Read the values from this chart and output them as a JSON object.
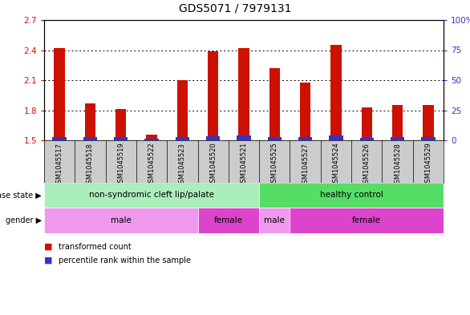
{
  "title": "GDS5071 / 7979131",
  "samples": [
    "GSM1045517",
    "GSM1045518",
    "GSM1045519",
    "GSM1045522",
    "GSM1045523",
    "GSM1045520",
    "GSM1045521",
    "GSM1045525",
    "GSM1045527",
    "GSM1045524",
    "GSM1045526",
    "GSM1045528",
    "GSM1045529"
  ],
  "transformed_count": [
    2.42,
    1.87,
    1.81,
    1.56,
    2.1,
    2.39,
    2.42,
    2.22,
    2.08,
    2.45,
    1.83,
    1.85,
    1.85
  ],
  "percentile_rank": [
    3.0,
    2.5,
    2.5,
    1.5,
    3.0,
    3.5,
    4.0,
    3.0,
    2.5,
    4.0,
    2.0,
    3.0,
    2.5
  ],
  "ymin": 1.5,
  "ymax": 2.7,
  "yticks_left": [
    1.5,
    1.8,
    2.1,
    2.4,
    2.7
  ],
  "right_ytick_vals": [
    0,
    25,
    50,
    75,
    100
  ],
  "right_yticklabels": [
    "0",
    "25",
    "50",
    "75",
    "100%"
  ],
  "bar_color": "#cc1100",
  "percentile_color": "#3333cc",
  "title_fontsize": 10,
  "disease_state_groups": [
    {
      "label": "non-syndromic cleft lip/palate",
      "start": 0,
      "end": 6,
      "color": "#aaeebb"
    },
    {
      "label": "healthy control",
      "start": 7,
      "end": 12,
      "color": "#55dd66"
    }
  ],
  "gender_groups": [
    {
      "label": "male",
      "start": 0,
      "end": 4,
      "color": "#ee99ee"
    },
    {
      "label": "female",
      "start": 5,
      "end": 6,
      "color": "#dd44cc"
    },
    {
      "label": "male",
      "start": 7,
      "end": 7,
      "color": "#ee99ee"
    },
    {
      "label": "female",
      "start": 8,
      "end": 12,
      "color": "#dd44cc"
    }
  ],
  "bar_width": 0.35,
  "tick_label_color_left": "#cc1100",
  "tick_label_color_right": "#3333cc"
}
